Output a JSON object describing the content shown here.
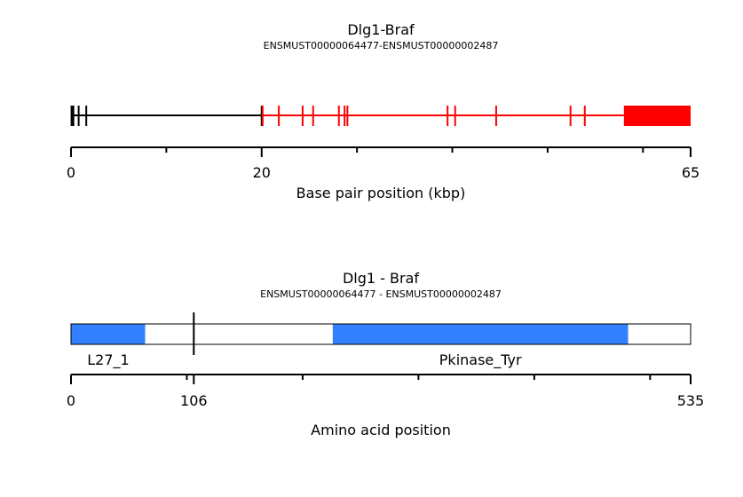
{
  "transcript": {
    "title": "Dlg1-Braf",
    "subtitle": "ENSMUST00000064477-ENSMUST00000002487",
    "axis_label": "Base pair position (kbp)",
    "tick_labels": [
      {
        "value": 0,
        "label": "0"
      },
      {
        "value": 20,
        "label": "20"
      },
      {
        "value": 65,
        "label": "65"
      }
    ],
    "minor_ticks": [
      10,
      30,
      40,
      50,
      60
    ],
    "range": [
      0,
      65
    ],
    "partner1_color": "#000000",
    "partner2_color": "#ff0000",
    "partner1_line": [
      0,
      20
    ],
    "partner2_line": [
      20,
      58
    ],
    "partner1_exons": [
      0.1,
      0.2,
      0.8,
      1.6,
      20
    ],
    "partner2_exons": [
      20.1,
      21.8,
      24.3,
      25.4,
      28.1,
      28.7,
      29,
      39.5,
      40.3,
      44.6,
      52.4,
      53.9
    ],
    "utr_block": [
      58,
      65
    ]
  },
  "protein": {
    "title": "Dlg1 - Braf",
    "subtitle": "ENSMUST00000064477 - ENSMUST00000002487",
    "axis_label": "Amino acid position",
    "tick_labels": [
      {
        "value": 0,
        "label": "0"
      },
      {
        "value": 106,
        "label": "106"
      },
      {
        "value": 535,
        "label": "535"
      }
    ],
    "minor_ticks": [
      100,
      200,
      300,
      400,
      500
    ],
    "length": 535,
    "breakpoint": 106,
    "domain_color": "#3080ff",
    "domains": [
      {
        "name": "L27_1",
        "start": 0,
        "end": 64
      },
      {
        "name": "Pkinase_Tyr",
        "start": 226,
        "end": 481
      }
    ]
  }
}
